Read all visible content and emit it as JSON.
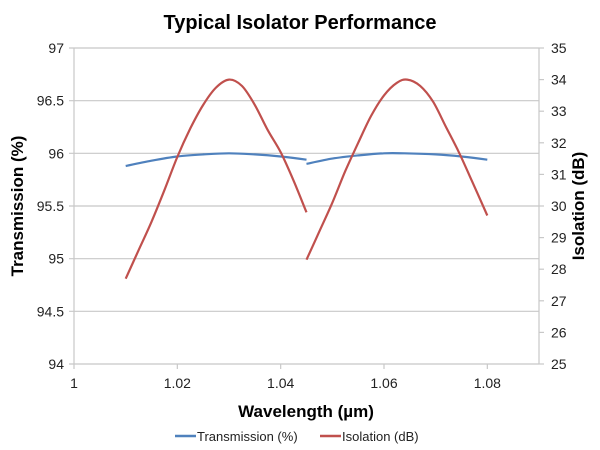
{
  "chart_data": {
    "type": "line",
    "title": "Typical Isolator Performance",
    "xlabel": "Wavelength (µm)",
    "ylabel": "Transmission (%)",
    "y2label": "Isolation (dB)",
    "xlim": [
      1,
      1.09
    ],
    "ylim": [
      94,
      97
    ],
    "y2lim": [
      25,
      35
    ],
    "x_ticks": [
      "1",
      "1.02",
      "1.04",
      "1.06",
      "1.08"
    ],
    "x_tick_values": [
      1,
      1.02,
      1.04,
      1.06,
      1.08
    ],
    "y_ticks": [
      "94",
      "94.5",
      "95",
      "95.5",
      "96",
      "96.5",
      "97"
    ],
    "y_tick_values": [
      94,
      94.5,
      95,
      95.5,
      96,
      96.5,
      97
    ],
    "y2_ticks": [
      "25",
      "26",
      "27",
      "28",
      "29",
      "30",
      "31",
      "32",
      "33",
      "34",
      "35"
    ],
    "y2_tick_values": [
      25,
      26,
      27,
      28,
      29,
      30,
      31,
      32,
      33,
      34,
      35
    ],
    "grid": true,
    "legend_position": "bottom",
    "series": [
      {
        "name": "Transmission (%)",
        "axis": "left",
        "color": "#4F81BD",
        "segments": [
          {
            "x": [
              1.01,
              1.015,
              1.02,
              1.025,
              1.03,
              1.035,
              1.04,
              1.045
            ],
            "y": [
              95.88,
              95.93,
              95.97,
              95.99,
              96.0,
              95.99,
              95.97,
              95.94
            ]
          },
          {
            "x": [
              1.045,
              1.05,
              1.055,
              1.06,
              1.064,
              1.07,
              1.075,
              1.08
            ],
            "y": [
              95.9,
              95.95,
              95.98,
              96.0,
              96.0,
              95.99,
              95.97,
              95.94
            ]
          }
        ]
      },
      {
        "name": "Isolation (dB)",
        "axis": "right",
        "color": "#C0504D",
        "segments": [
          {
            "x": [
              1.01,
              1.0125,
              1.015,
              1.0175,
              1.02,
              1.0225,
              1.025,
              1.0275,
              1.03,
              1.0325,
              1.035,
              1.0375,
              1.04,
              1.0425,
              1.045
            ],
            "y": [
              27.7,
              28.6,
              29.5,
              30.5,
              31.55,
              32.45,
              33.2,
              33.75,
              34.0,
              33.8,
              33.2,
              32.4,
              31.7,
              30.8,
              29.8
            ]
          },
          {
            "x": [
              1.045,
              1.0475,
              1.05,
              1.0525,
              1.055,
              1.0575,
              1.06,
              1.0625,
              1.0645,
              1.067,
              1.0695,
              1.072,
              1.0745,
              1.077,
              1.08
            ],
            "y": [
              28.3,
              29.2,
              30.1,
              31.1,
              32.0,
              32.85,
              33.5,
              33.9,
              34.0,
              33.8,
              33.3,
              32.5,
              31.7,
              30.8,
              29.7
            ]
          }
        ]
      }
    ]
  }
}
